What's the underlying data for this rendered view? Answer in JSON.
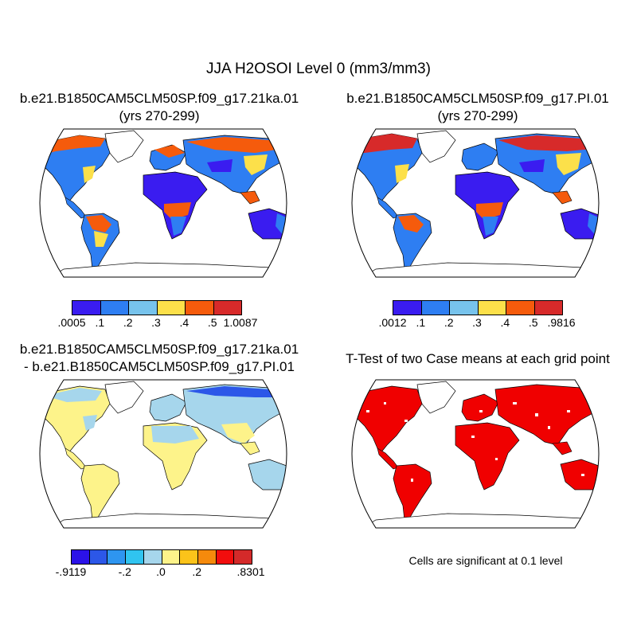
{
  "title": "JJA H2OSOI Level 0 (mm3/mm3)",
  "panels": [
    {
      "title_line1": "b.e21.B1850CAM5CLM50SP.f09_g17.21ka.01",
      "title_line2": "(yrs 270-299)",
      "colorbar": {
        "colors": [
          "#3a1cf0",
          "#2e7ef2",
          "#77c3ec",
          "#fce04a",
          "#f55b0c",
          "#d72a2a"
        ],
        "labels": [
          ".0005",
          ".1",
          ".2",
          ".3",
          ".4",
          ".5",
          "1.0087"
        ]
      }
    },
    {
      "title_line1": "b.e21.B1850CAM5CLM50SP.f09_g17.PI.01",
      "title_line2": "(yrs 270-299)",
      "colorbar": {
        "colors": [
          "#3a1cf0",
          "#2e7ef2",
          "#77c3ec",
          "#fce04a",
          "#f55b0c",
          "#d72a2a"
        ],
        "labels": [
          ".0012",
          ".1",
          ".2",
          ".3",
          ".4",
          ".5",
          ".9816"
        ]
      }
    },
    {
      "title_line1": "b.e21.B1850CAM5CLM50SP.f09_g17.21ka.01",
      "title_line2": "- b.e21.B1850CAM5CLM50SP.f09_g17.PI.01",
      "colorbar": {
        "colors": [
          "#2b12e8",
          "#2c57e8",
          "#2e95f0",
          "#30c4f0",
          "#a6d6ec",
          "#fdf38a",
          "#fbc31a",
          "#f58a0c",
          "#f20d0d",
          "#d42a2a"
        ],
        "labels": [
          "-.9119",
          "-.2",
          ".0",
          ".2",
          ".8301"
        ]
      }
    },
    {
      "title_line1": "T-Test of two Case means at each grid point",
      "note": "Cells are significant at 0.1 level",
      "color": "#f00000"
    }
  ]
}
